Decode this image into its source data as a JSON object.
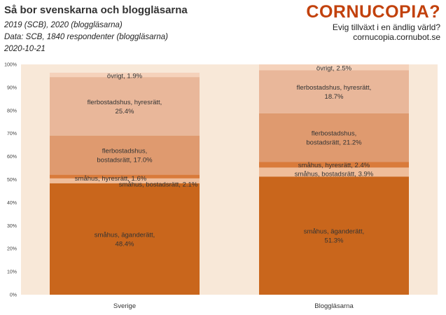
{
  "title": "Så bor svenskarna och bloggläsarna",
  "subtitle_lines": [
    "2019 (SCB), 2020 (bloggläsarna)",
    "Data: SCB, 1840 respondenter (bloggläsarna)",
    "2020-10-21"
  ],
  "brand": {
    "name": "CORNUCOPIA?",
    "tagline": "Evig tillväxt i en ändlig värld?",
    "url": "cornucopia.cornubot.se"
  },
  "colors": {
    "background_band": "#f8e8d8",
    "agande": "#c9661c",
    "sm_hyres": "#d97b3b",
    "sm_bostad": "#efbd9a",
    "fl_bostad": "#df9a6f",
    "fl_hyres": "#e9b79a",
    "ovrigt": "#f5d2bb"
  },
  "chart_data": {
    "type": "bar",
    "stacked": true,
    "percent": true,
    "categories": [
      "Sverige",
      "Bloggläsarna"
    ],
    "ylim": [
      0,
      100
    ],
    "yticks": [
      "0%",
      "10%",
      "20%",
      "30%",
      "40%",
      "50%",
      "60%",
      "70%",
      "80%",
      "90%",
      "100%"
    ],
    "grid": false,
    "legend": "none",
    "series": [
      {
        "key": "agande",
        "label": [
          "småhus, äganderätt,",
          "48.4%",
          "småhus, äganderätt,",
          "51.3%"
        ],
        "values": [
          48.4,
          51.3
        ]
      },
      {
        "key": "sm_bostad",
        "label": [
          "småhus, bostadsrätt, 2.1%",
          "småhus, bostadsrätt, 3.9%"
        ],
        "values": [
          2.1,
          3.9
        ]
      },
      {
        "key": "sm_hyres",
        "label": [
          "småhus, hyresrätt, 1.6%",
          "småhus, hyresrätt, 2.4%"
        ],
        "values": [
          1.6,
          2.4
        ]
      },
      {
        "key": "fl_bostad",
        "label": [
          "flerbostadshus,",
          "bostadsrätt, 17.0%",
          "flerbostadshus,",
          "bostadsrätt, 21.2%"
        ],
        "values": [
          17.0,
          21.2
        ]
      },
      {
        "key": "fl_hyres",
        "label": [
          "flerbostadshus, hyresrätt,",
          "25.4%",
          "flerbostadshus, hyresrätt,",
          "18.7%"
        ],
        "values": [
          25.4,
          18.7
        ]
      },
      {
        "key": "ovrigt",
        "label": [
          "övrigt, 1.9%",
          "övrigt, 2.5%"
        ],
        "values": [
          1.9,
          2.5
        ]
      }
    ]
  }
}
